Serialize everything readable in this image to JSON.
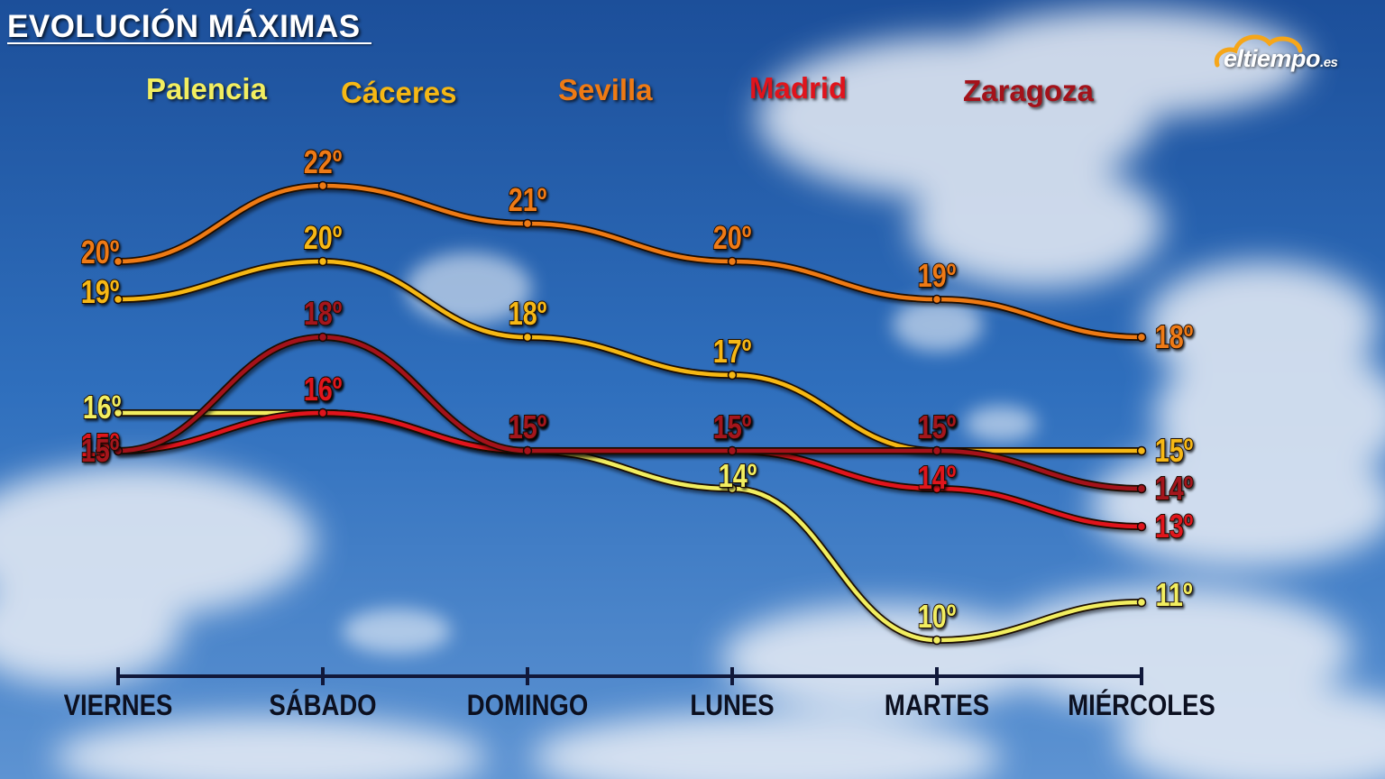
{
  "title": "EVOLUCIÓN MÁXIMAS",
  "logo": {
    "text": "eltiempo",
    "suffix": ".es"
  },
  "chart_data": {
    "type": "line",
    "title": "EVOLUCIÓN MÁXIMAS",
    "categories": [
      "VIERNES",
      "SÁBADO",
      "DOMINGO",
      "LUNES",
      "MARTES",
      "MIÉRCOLES"
    ],
    "ylim": [
      10,
      22
    ],
    "unit": "º",
    "grid": false,
    "legend": "top",
    "series": [
      {
        "name": "Palencia",
        "color": "#f2ee60",
        "values": [
          16,
          16,
          15,
          14,
          10,
          11
        ]
      },
      {
        "name": "Cáceres",
        "color": "#f6b814",
        "values": [
          19,
          20,
          18,
          17,
          15,
          15
        ]
      },
      {
        "name": "Sevilla",
        "color": "#ee7a14",
        "values": [
          20,
          22,
          21,
          20,
          19,
          18
        ]
      },
      {
        "name": "Madrid",
        "color": "#e0141c",
        "values": [
          15,
          16,
          15,
          15,
          14,
          13
        ]
      },
      {
        "name": "Zaragoza",
        "color": "#a4121a",
        "values": [
          15,
          18,
          15,
          15,
          15,
          14
        ]
      }
    ]
  }
}
